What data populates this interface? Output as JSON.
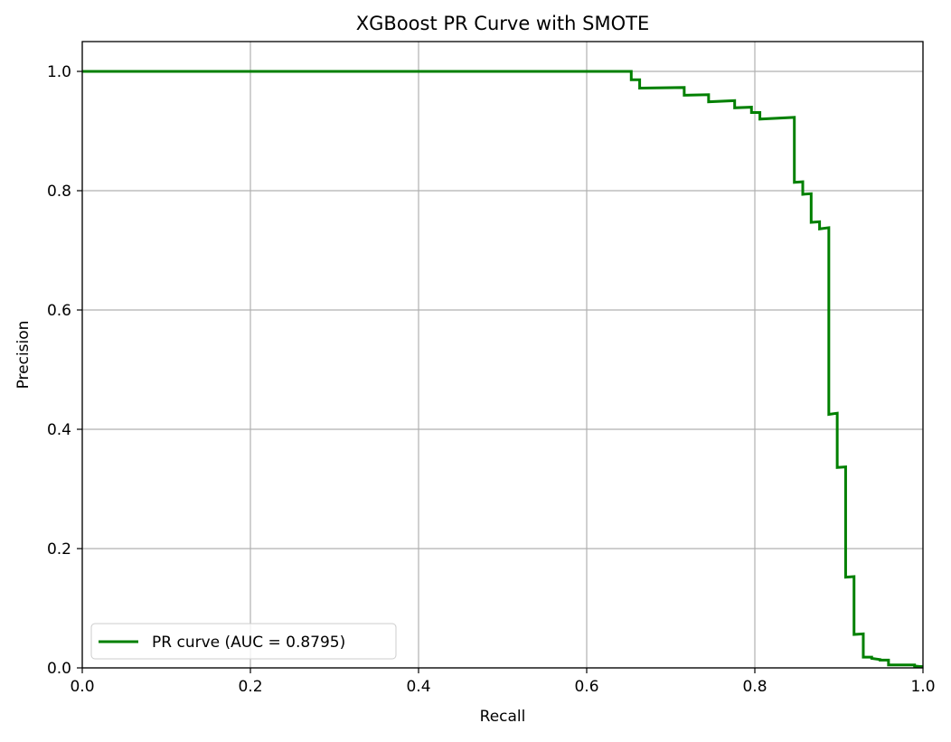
{
  "chart_data": {
    "type": "line",
    "title": "XGBoost PR Curve with SMOTE",
    "xlabel": "Recall",
    "ylabel": "Precision",
    "xlim": [
      0.0,
      1.0
    ],
    "ylim": [
      0.0,
      1.05
    ],
    "xticks": [
      0.0,
      0.2,
      0.4,
      0.6,
      0.8,
      1.0
    ],
    "xtick_labels": [
      "0.0",
      "0.2",
      "0.4",
      "0.6",
      "0.8",
      "1.0"
    ],
    "yticks": [
      0.0,
      0.2,
      0.4,
      0.6,
      0.8,
      1.0
    ],
    "ytick_labels": [
      "0.0",
      "0.2",
      "0.4",
      "0.6",
      "0.8",
      "1.0"
    ],
    "grid": true,
    "legend_position": "lower-left",
    "series": [
      {
        "name": "PR curve (AUC = 0.8795)",
        "color": "#008000",
        "step": true,
        "points": [
          [
            0.0,
            1.0
          ],
          [
            0.653,
            1.0
          ],
          [
            0.653,
            0.986
          ],
          [
            0.663,
            0.986
          ],
          [
            0.663,
            0.972
          ],
          [
            0.716,
            0.973
          ],
          [
            0.716,
            0.96
          ],
          [
            0.745,
            0.961
          ],
          [
            0.745,
            0.949
          ],
          [
            0.776,
            0.951
          ],
          [
            0.776,
            0.939
          ],
          [
            0.796,
            0.94
          ],
          [
            0.796,
            0.931
          ],
          [
            0.806,
            0.931
          ],
          [
            0.806,
            0.92
          ],
          [
            0.847,
            0.923
          ],
          [
            0.847,
            0.814
          ],
          [
            0.857,
            0.815
          ],
          [
            0.857,
            0.794
          ],
          [
            0.867,
            0.795
          ],
          [
            0.867,
            0.747
          ],
          [
            0.877,
            0.748
          ],
          [
            0.877,
            0.736
          ],
          [
            0.888,
            0.738
          ],
          [
            0.888,
            0.425
          ],
          [
            0.898,
            0.427
          ],
          [
            0.898,
            0.336
          ],
          [
            0.908,
            0.337
          ],
          [
            0.908,
            0.152
          ],
          [
            0.918,
            0.153
          ],
          [
            0.918,
            0.056
          ],
          [
            0.929,
            0.057
          ],
          [
            0.929,
            0.018
          ],
          [
            0.939,
            0.018
          ],
          [
            0.939,
            0.016
          ],
          [
            0.949,
            0.014
          ],
          [
            0.949,
            0.013
          ],
          [
            0.959,
            0.013
          ],
          [
            0.959,
            0.005
          ],
          [
            0.98,
            0.005
          ],
          [
            0.99,
            0.005
          ],
          [
            0.99,
            0.003
          ],
          [
            1.0,
            0.002
          ]
        ]
      }
    ]
  }
}
